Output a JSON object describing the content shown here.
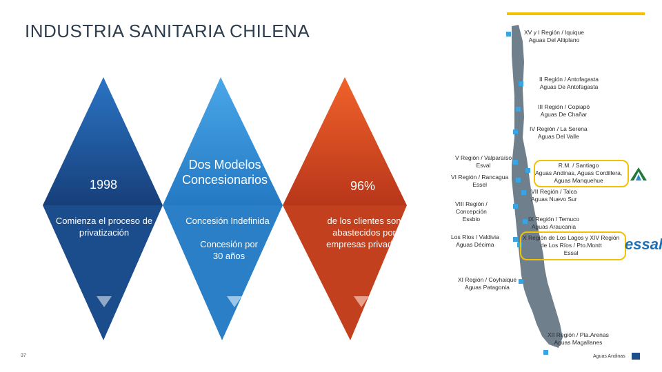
{
  "title": "INDUSTRIA SANITARIA CHILENA",
  "panels": [
    {
      "heading": "1998",
      "text": "Comienza el proceso de privatización",
      "text2": ""
    },
    {
      "heading": "Dos Modelos Concesionarios",
      "text": "Concesión Indefinida",
      "text2": "Concesión por 30 años"
    },
    {
      "heading": "96%",
      "text": "de los clientes son abastecidos por empresas privadas",
      "text2": ""
    }
  ],
  "regions": [
    {
      "line1": "XV y I Región / Iquique",
      "line2": "Aguas Del Altiplano",
      "line3": ""
    },
    {
      "line1": "II Región / Antofagasta",
      "line2": "Aguas De Antofagasta",
      "line3": ""
    },
    {
      "line1": "III Región / Copiapó",
      "line2": "Aguas De Chañar",
      "line3": ""
    },
    {
      "line1": "IV Región / La Serena",
      "line2": "Aguas Del Valle",
      "line3": ""
    },
    {
      "line1": "V Región / Valparaíso",
      "line2": "Esval",
      "line3": ""
    },
    {
      "line1": "R.M. / Santiago",
      "line2": "Aguas Andinas, Aguas Cordillera,",
      "line3": "Aguas Manquehue"
    },
    {
      "line1": "VI Región / Rancagua",
      "line2": "Essel",
      "line3": ""
    },
    {
      "line1": "VII Región / Talca",
      "line2": "Aguas Nuevo Sur",
      "line3": ""
    },
    {
      "line1": "VIII Región /",
      "line2": "Concepción",
      "line3": "Essbio"
    },
    {
      "line1": "IX Región / Temuco",
      "line2": "Aguas Araucania",
      "line3": ""
    },
    {
      "line1": "Los Ríos / Valdivia",
      "line2": "Aguas Décima",
      "line3": ""
    },
    {
      "line1": "X Región de Los Lagos y XIV Región",
      "line2": "de Los Ríos / Pto.Montt",
      "line3": "Essal"
    },
    {
      "line1": "XI Región / Coyhaique",
      "line2": "Aguas Patagonia",
      "line3": ""
    },
    {
      "line1": "XII Región / Pta.Arenas",
      "line2": "Aguas Magallanes",
      "line3": ""
    }
  ],
  "brand_essal": "essal",
  "footer": {
    "page_number": "37",
    "brand": "Aguas Andinas"
  },
  "colors": {
    "dark_blue": "#1f5fa6",
    "light_blue": "#3a95d8",
    "orange": "#e8531e",
    "marker": "#3aa3e0",
    "highlight": "#f2c200"
  }
}
